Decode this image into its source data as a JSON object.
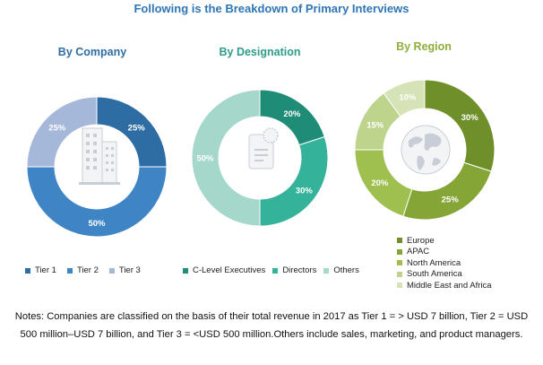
{
  "title": "Following is the Breakdown of Primary Interviews",
  "colors": {
    "title": "#2e75b6",
    "company_title": "#2e6da4",
    "designation_title": "#2e9c8a",
    "region_title": "#8fae3b"
  },
  "chart_data": [
    {
      "type": "pie",
      "title": "By Company",
      "categories": [
        "Tier 1",
        "Tier 2",
        "Tier 3"
      ],
      "values": [
        25,
        50,
        25
      ],
      "labels": [
        "25%",
        "50%",
        "25%"
      ],
      "colors": [
        "#2e6da4",
        "#3f85c6",
        "#a6b8d9"
      ],
      "center_icon": "building-icon",
      "legend_position": "bottom"
    },
    {
      "type": "pie",
      "title": "By Designation",
      "categories": [
        "C-Level Executives",
        "Directors",
        "Others"
      ],
      "values": [
        20,
        30,
        50
      ],
      "labels": [
        "20%",
        "30%",
        "50%"
      ],
      "colors": [
        "#1f8c78",
        "#35b29a",
        "#a6d7cb"
      ],
      "center_icon": "document-badge-icon",
      "legend_position": "bottom"
    },
    {
      "type": "pie",
      "title": "By Region",
      "categories": [
        "Europe",
        "APAC",
        "North America",
        "South America",
        "Middle East and Africa"
      ],
      "values": [
        30,
        25,
        20,
        15,
        10
      ],
      "labels": [
        "30%",
        "25%",
        "20%",
        "15%",
        "10%"
      ],
      "colors": [
        "#6f8f2a",
        "#85a637",
        "#9fbf4f",
        "#bed48d",
        "#d5e3b6"
      ],
      "center_icon": "globe-icon",
      "legend_position": "bottom-right"
    }
  ],
  "notes": "Notes: Companies are classified on the basis of their total revenue in 2017 as Tier 1 = > USD 7 billion, Tier 2 = USD 500 million–USD 7 billion, and Tier 3 = <USD 500 million.Others include sales, marketing, and product managers."
}
